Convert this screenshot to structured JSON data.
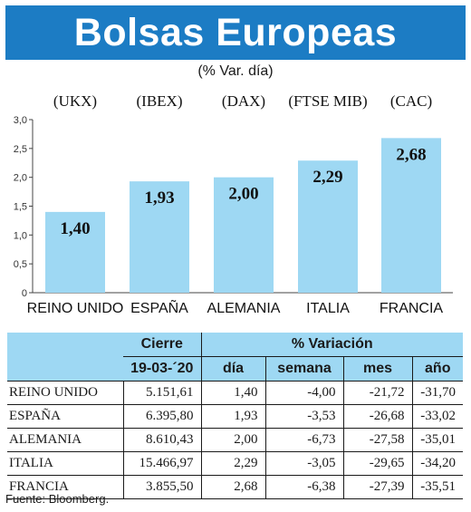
{
  "title": "Bolsas Europeas",
  "subtitle": "(% Var. día)",
  "source": "Fuente: Bloomberg.",
  "colors": {
    "title_bg": "#1c7cc4",
    "bar": "#9ed8f3",
    "header_bg": "#9ed8f3"
  },
  "chart_data": {
    "type": "bar",
    "categories": [
      "REINO UNIDO",
      "ESPAÑA",
      "ALEMANIA",
      "ITALIA",
      "FRANCIA"
    ],
    "codes": [
      "(UKX)",
      "(IBEX)",
      "(DAX)",
      "(FTSE MIB)",
      "(CAC)"
    ],
    "values": [
      1.4,
      1.93,
      2.0,
      2.29,
      2.68
    ],
    "value_labels": [
      "1,40",
      "1,93",
      "2,00",
      "2,29",
      "2,68"
    ],
    "ylim": [
      0,
      3.0
    ],
    "yticks": [
      0,
      0.5,
      1.0,
      1.5,
      2.0,
      2.5,
      3.0
    ],
    "ytick_labels": [
      "0",
      "0,5",
      "1,0",
      "1,5",
      "2,0",
      "2,5",
      "3,0"
    ],
    "grid": false,
    "title": "Bolsas Europeas"
  },
  "table": {
    "group_headers": {
      "cierre": "Cierre",
      "variacion": "% Variación"
    },
    "sub_headers": {
      "date": "19-03-´20",
      "dia": "día",
      "semana": "semana",
      "mes": "mes",
      "ano": "año"
    },
    "rows": [
      {
        "name": "REINO UNIDO",
        "cierre": "5.151,61",
        "dia": "1,40",
        "semana": "-4,00",
        "mes": "-21,72",
        "ano": "-31,70"
      },
      {
        "name": "ESPAÑA",
        "cierre": "6.395,80",
        "dia": "1,93",
        "semana": "-3,53",
        "mes": "-26,68",
        "ano": "-33,02"
      },
      {
        "name": "ALEMANIA",
        "cierre": "8.610,43",
        "dia": "2,00",
        "semana": "-6,73",
        "mes": "-27,58",
        "ano": "-35,01"
      },
      {
        "name": "ITALIA",
        "cierre": "15.466,97",
        "dia": "2,29",
        "semana": "-3,05",
        "mes": "-29,65",
        "ano": "-34,20"
      },
      {
        "name": "FRANCIA",
        "cierre": "3.855,50",
        "dia": "2,68",
        "semana": "-6,38",
        "mes": "-27,39",
        "ano": "-35,51"
      }
    ]
  }
}
